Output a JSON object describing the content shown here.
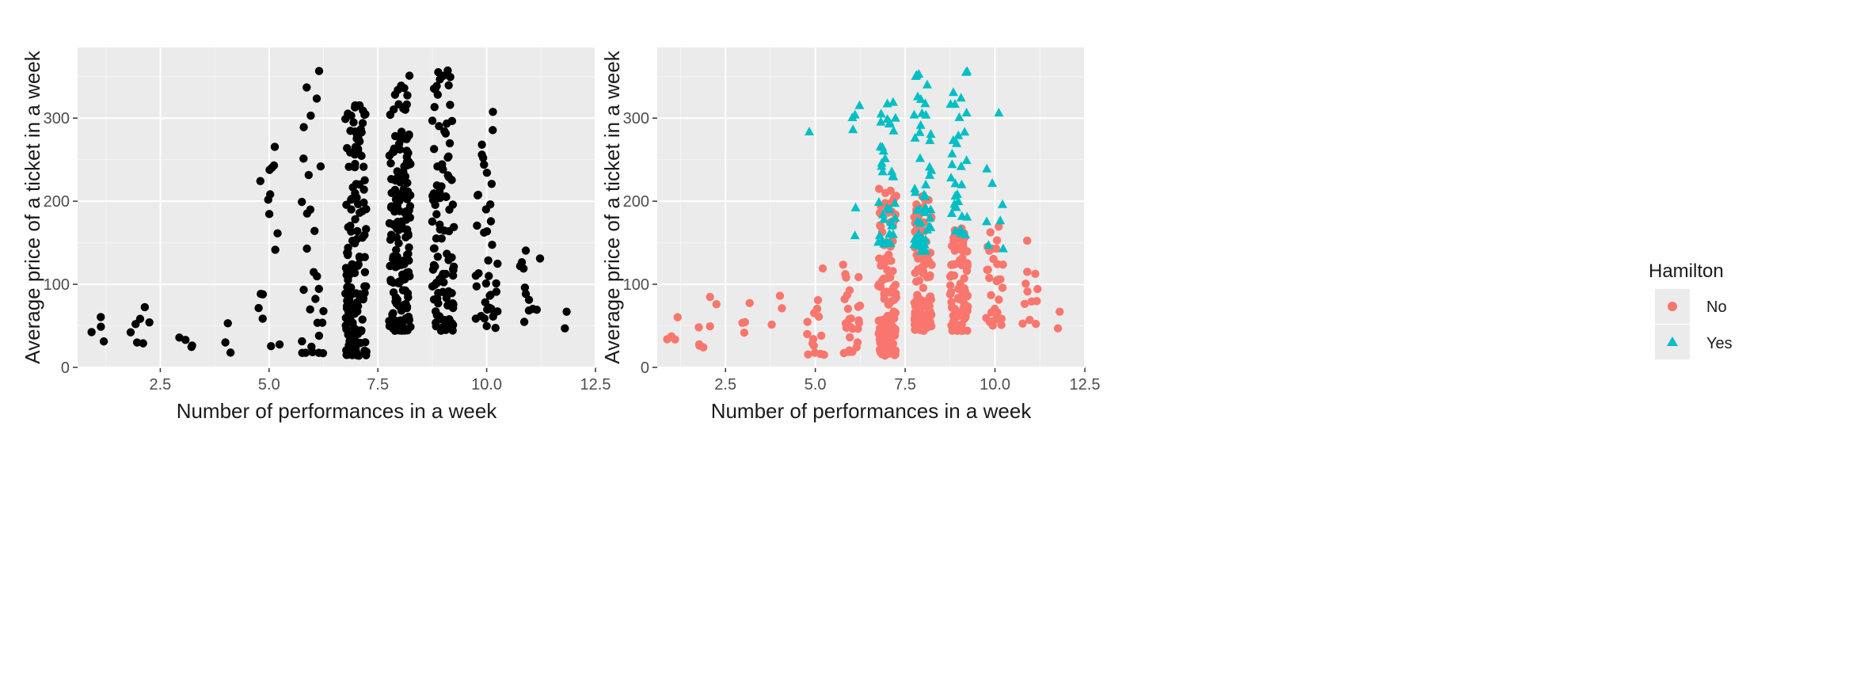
{
  "chart_data": [
    {
      "type": "scatter",
      "title": "",
      "xlabel": "Number of performances in a week",
      "ylabel": "Average price of a ticket in a week",
      "xlim": [
        0.6,
        12.5
      ],
      "ylim": [
        0,
        385
      ],
      "xticks": [
        "2.5",
        "5.0",
        "7.5",
        "10.0",
        "12.5"
      ],
      "xtick_values": [
        2.5,
        5.0,
        7.5,
        10.0,
        12.5
      ],
      "yticks": [
        "0",
        "100",
        "200",
        "300"
      ],
      "ytick_values": [
        0,
        100,
        200,
        300
      ],
      "grid": true,
      "point_color": "#000000",
      "clusters": [
        {
          "x": 1,
          "n": 4,
          "ymin": 30,
          "ymax": 63,
          "seed": 1
        },
        {
          "x": 2,
          "n": 7,
          "ymin": 24,
          "ymax": 109,
          "seed": 2
        },
        {
          "x": 3,
          "n": 4,
          "ymin": 19,
          "ymax": 84,
          "seed": 3
        },
        {
          "x": 4,
          "n": 3,
          "ymin": 17,
          "ymax": 99,
          "seed": 4
        },
        {
          "x": 5,
          "n": 16,
          "ymin": 14,
          "ymax": 284,
          "seed": 5
        },
        {
          "x": 6,
          "n": 30,
          "ymin": 17,
          "ymax": 376,
          "seed": 6
        },
        {
          "x": 7,
          "n": 160,
          "ymin": 14,
          "ymax": 320,
          "seed": 7
        },
        {
          "x": 8,
          "n": 165,
          "ymin": 44,
          "ymax": 354,
          "seed": 8
        },
        {
          "x": 9,
          "n": 110,
          "ymin": 44,
          "ymax": 359,
          "seed": 9
        },
        {
          "x": 10,
          "n": 40,
          "ymin": 46,
          "ymax": 314,
          "seed": 10
        },
        {
          "x": 11,
          "n": 12,
          "ymin": 52,
          "ymax": 156,
          "seed": 11
        },
        {
          "x": 12,
          "n": 2,
          "ymin": 47,
          "ymax": 67,
          "seed": 12
        }
      ]
    },
    {
      "type": "scatter",
      "title": "",
      "xlabel": "Number of performances in a week",
      "ylabel": "Average price of a ticket in a week",
      "xlim": [
        0.6,
        12.5
      ],
      "ylim": [
        0,
        385
      ],
      "xticks": [
        "2.5",
        "5.0",
        "7.5",
        "10.0",
        "12.5"
      ],
      "xtick_values": [
        2.5,
        5.0,
        7.5,
        10.0,
        12.5
      ],
      "yticks": [
        "0",
        "100",
        "200",
        "300"
      ],
      "ytick_values": [
        0,
        100,
        200,
        300
      ],
      "grid": true,
      "legend": {
        "title": "Hamilton",
        "position": "right",
        "entries": [
          {
            "label": "No",
            "color": "#F8766D",
            "shape": "circle"
          },
          {
            "label": "Yes",
            "color": "#00BFC4",
            "shape": "triangle"
          }
        ]
      },
      "series": [
        {
          "name": "No",
          "color": "#F8766D",
          "shape": "circle",
          "clusters": [
            {
              "x": 1,
              "n": 4,
              "ymin": 30,
              "ymax": 63,
              "seed": 21
            },
            {
              "x": 2,
              "n": 7,
              "ymin": 24,
              "ymax": 109,
              "seed": 22
            },
            {
              "x": 3,
              "n": 4,
              "ymin": 19,
              "ymax": 84,
              "seed": 23
            },
            {
              "x": 4,
              "n": 3,
              "ymin": 17,
              "ymax": 99,
              "seed": 24
            },
            {
              "x": 5,
              "n": 15,
              "ymin": 14,
              "ymax": 128,
              "seed": 25
            },
            {
              "x": 6,
              "n": 26,
              "ymin": 17,
              "ymax": 130,
              "seed": 26
            },
            {
              "x": 7,
              "n": 125,
              "ymin": 14,
              "ymax": 217,
              "seed": 27
            },
            {
              "x": 8,
              "n": 120,
              "ymin": 44,
              "ymax": 210,
              "seed": 28
            },
            {
              "x": 9,
              "n": 80,
              "ymin": 44,
              "ymax": 170,
              "seed": 29
            },
            {
              "x": 10,
              "n": 30,
              "ymin": 46,
              "ymax": 170,
              "seed": 30
            },
            {
              "x": 11,
              "n": 12,
              "ymin": 52,
              "ymax": 156,
              "seed": 31
            },
            {
              "x": 12,
              "n": 2,
              "ymin": 47,
              "ymax": 67,
              "seed": 32
            }
          ]
        },
        {
          "name": "Yes",
          "color": "#00BFC4",
          "shape": "triangle",
          "clusters": [
            {
              "x": 5,
              "n": 1,
              "ymin": 284,
              "ymax": 284,
              "seed": 41
            },
            {
              "x": 6,
              "n": 6,
              "ymin": 157,
              "ymax": 376,
              "seed": 42
            },
            {
              "x": 7,
              "n": 38,
              "ymin": 148,
              "ymax": 322,
              "seed": 43
            },
            {
              "x": 8,
              "n": 52,
              "ymin": 140,
              "ymax": 354,
              "seed": 44
            },
            {
              "x": 9,
              "n": 32,
              "ymin": 160,
              "ymax": 359,
              "seed": 45
            },
            {
              "x": 10,
              "n": 8,
              "ymin": 138,
              "ymax": 314,
              "seed": 46
            }
          ]
        }
      ]
    }
  ]
}
